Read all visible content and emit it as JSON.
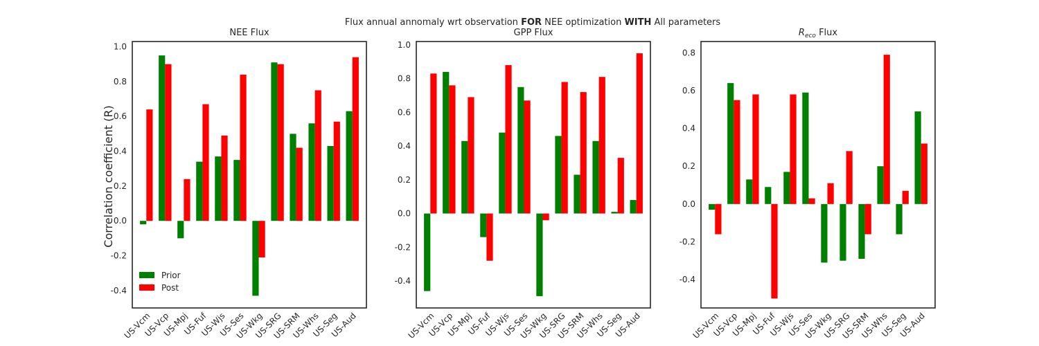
{
  "figure": {
    "suptitle_parts": [
      {
        "text": "Flux annual annomaly wrt observation ",
        "bold": false
      },
      {
        "text": "FOR",
        "bold": true
      },
      {
        "text": " NEE optimization ",
        "bold": false
      },
      {
        "text": "WITH",
        "bold": true
      },
      {
        "text": " All parameters",
        "bold": false
      }
    ],
    "ylabel": "Correlation coefficient (R)",
    "colors": {
      "prior": "#008000",
      "post": "#ff0000"
    }
  },
  "chart_data": [
    {
      "type": "bar",
      "title": "NEE Flux",
      "title_sub": "",
      "title_rest": "",
      "categories": [
        "US-Vcm",
        "US-Vcp",
        "US-Mpj",
        "US-Fuf",
        "US-Wjs",
        "US-Ses",
        "US-Wkg",
        "US-SRG",
        "US-SRM",
        "US-Whs",
        "US-Seg",
        "US-Aud"
      ],
      "series": [
        {
          "name": "Prior",
          "color": "#008000",
          "values": [
            -0.02,
            0.95,
            -0.1,
            0.34,
            0.37,
            0.35,
            -0.43,
            0.91,
            0.5,
            0.56,
            0.43,
            0.63
          ]
        },
        {
          "name": "Post",
          "color": "#ff0000",
          "values": [
            0.64,
            0.9,
            0.24,
            0.67,
            0.49,
            0.84,
            -0.21,
            0.9,
            0.42,
            0.75,
            0.57,
            0.94
          ]
        }
      ],
      "ylim": [
        -0.5,
        1.03
      ],
      "yticks": [
        "-0.4",
        "-0.2",
        "0.0",
        "0.2",
        "0.4",
        "0.6",
        "0.8",
        "1.0"
      ],
      "legend": {
        "position": "lower-left",
        "entries": [
          "Prior",
          "Post"
        ]
      },
      "grid": false
    },
    {
      "type": "bar",
      "title": "GPP Flux",
      "title_sub": "",
      "title_rest": "",
      "categories": [
        "US-Vcm",
        "US-Vcp",
        "US-Mpj",
        "US-Fuf",
        "US-Wjs",
        "US-Ses",
        "US-Wkg",
        "US-SRG",
        "US-SRM",
        "US-Whs",
        "US-Seg",
        "US-Aud"
      ],
      "series": [
        {
          "name": "Prior",
          "color": "#008000",
          "values": [
            -0.46,
            0.84,
            0.43,
            -0.14,
            0.48,
            0.75,
            -0.49,
            0.46,
            0.23,
            0.43,
            0.01,
            0.08
          ]
        },
        {
          "name": "Post",
          "color": "#ff0000",
          "values": [
            0.83,
            0.76,
            0.69,
            -0.28,
            0.88,
            0.67,
            -0.04,
            0.78,
            0.72,
            0.81,
            0.33,
            0.95
          ]
        }
      ],
      "ylim": [
        -0.56,
        1.02
      ],
      "yticks": [
        "-0.4",
        "-0.2",
        "0.0",
        "0.2",
        "0.4",
        "0.6",
        "0.8",
        "1.0"
      ],
      "grid": false
    },
    {
      "type": "bar",
      "title": "R",
      "title_sub": "eco",
      "title_rest": " Flux",
      "categories": [
        "US-Vcm",
        "US-Vcp",
        "US-Mpj",
        "US-Fuf",
        "US-Wjs",
        "US-Ses",
        "US-Wkg",
        "US-SRG",
        "US-SRM",
        "US-Whs",
        "US-Seg",
        "US-Aud"
      ],
      "series": [
        {
          "name": "Prior",
          "color": "#008000",
          "values": [
            -0.03,
            0.64,
            0.13,
            0.09,
            0.17,
            0.59,
            -0.31,
            -0.3,
            -0.29,
            0.2,
            -0.16,
            0.49
          ]
        },
        {
          "name": "Post",
          "color": "#ff0000",
          "values": [
            -0.16,
            0.55,
            0.58,
            -0.5,
            0.58,
            0.03,
            0.11,
            0.28,
            -0.16,
            0.79,
            0.07,
            0.32
          ]
        }
      ],
      "ylim": [
        -0.55,
        0.86
      ],
      "yticks": [
        "-0.4",
        "-0.2",
        "0.0",
        "0.2",
        "0.4",
        "0.6",
        "0.8"
      ],
      "grid": false
    }
  ]
}
